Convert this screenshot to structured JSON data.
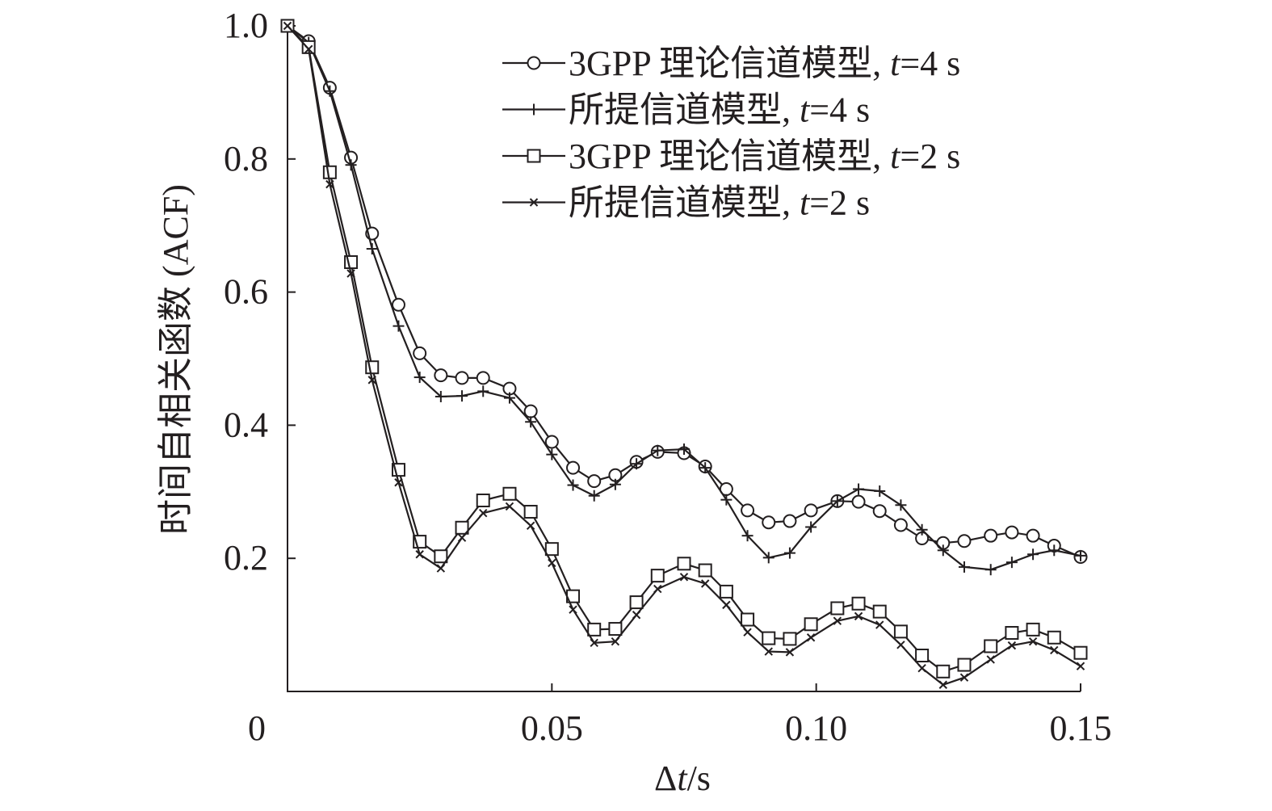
{
  "chart_data": {
    "type": "line",
    "xlabel_prefix": "Δ",
    "xlabel_var": "t",
    "xlabel_unit": "/s",
    "ylabel": "时间自相关函数 (ACF)",
    "xlim": [
      0,
      0.15
    ],
    "ylim": [
      0,
      1.0
    ],
    "xticks": [
      {
        "value": 0,
        "label": "0"
      },
      {
        "value": 0.05,
        "label": "0.05"
      },
      {
        "value": 0.1,
        "label": "0.10"
      },
      {
        "value": 0.15,
        "label": "0.15"
      }
    ],
    "yticks": [
      {
        "value": 0.2,
        "label": "0.2"
      },
      {
        "value": 0.4,
        "label": "0.4"
      },
      {
        "value": 0.6,
        "label": "0.6"
      },
      {
        "value": 0.8,
        "label": "0.8"
      },
      {
        "value": 1.0,
        "label": "1.0"
      }
    ],
    "grid": false,
    "legend_position": "top-right",
    "x": [
      0,
      0.004,
      0.008,
      0.012,
      0.016,
      0.021,
      0.025,
      0.029,
      0.033,
      0.037,
      0.042,
      0.046,
      0.05,
      0.054,
      0.058,
      0.062,
      0.066,
      0.07,
      0.075,
      0.079,
      0.083,
      0.087,
      0.091,
      0.095,
      0.099,
      0.104,
      0.108,
      0.112,
      0.116,
      0.12,
      0.124,
      0.128,
      0.133,
      0.137,
      0.141,
      0.145,
      0.15
    ],
    "series": [
      {
        "legend_prefix": "3GPP 理论信道模型, ",
        "legend_var": "t",
        "legend_suffix": "=4 s",
        "marker": "circle",
        "values": [
          1.0,
          0.977,
          0.907,
          0.802,
          0.688,
          0.581,
          0.508,
          0.475,
          0.471,
          0.471,
          0.455,
          0.421,
          0.375,
          0.336,
          0.316,
          0.325,
          0.345,
          0.36,
          0.358,
          0.338,
          0.304,
          0.272,
          0.254,
          0.256,
          0.272,
          0.286,
          0.285,
          0.271,
          0.25,
          0.23,
          0.223,
          0.226,
          0.234,
          0.239,
          0.234,
          0.219,
          0.202
        ]
      },
      {
        "legend_prefix": "所提信道模型, ",
        "legend_var": "t",
        "legend_suffix": "=4 s",
        "marker": "plus",
        "values": [
          1.0,
          0.975,
          0.902,
          0.791,
          0.665,
          0.549,
          0.472,
          0.443,
          0.444,
          0.451,
          0.441,
          0.405,
          0.356,
          0.31,
          0.294,
          0.311,
          0.342,
          0.362,
          0.364,
          0.336,
          0.288,
          0.234,
          0.201,
          0.208,
          0.247,
          0.286,
          0.304,
          0.301,
          0.28,
          0.243,
          0.212,
          0.187,
          0.183,
          0.194,
          0.206,
          0.212,
          0.204
        ]
      },
      {
        "legend_prefix": "3GPP 理论信道模型, ",
        "legend_var": "t",
        "legend_suffix": "=2 s",
        "marker": "square",
        "values": [
          1.0,
          0.968,
          0.78,
          0.645,
          0.487,
          0.333,
          0.225,
          0.203,
          0.246,
          0.287,
          0.297,
          0.27,
          0.214,
          0.143,
          0.093,
          0.094,
          0.134,
          0.174,
          0.192,
          0.182,
          0.15,
          0.108,
          0.08,
          0.079,
          0.101,
          0.125,
          0.132,
          0.12,
          0.09,
          0.054,
          0.03,
          0.04,
          0.068,
          0.088,
          0.093,
          0.081,
          0.058
        ]
      },
      {
        "legend_prefix": "所提信道模型, ",
        "legend_var": "t",
        "legend_suffix": "=2 s",
        "marker": "x",
        "values": [
          1.0,
          0.965,
          0.762,
          0.628,
          0.468,
          0.314,
          0.206,
          0.185,
          0.231,
          0.268,
          0.278,
          0.249,
          0.193,
          0.123,
          0.073,
          0.075,
          0.115,
          0.154,
          0.172,
          0.162,
          0.13,
          0.089,
          0.06,
          0.059,
          0.081,
          0.106,
          0.113,
          0.1,
          0.07,
          0.035,
          0.01,
          0.021,
          0.048,
          0.069,
          0.075,
          0.062,
          0.038
        ]
      }
    ]
  }
}
